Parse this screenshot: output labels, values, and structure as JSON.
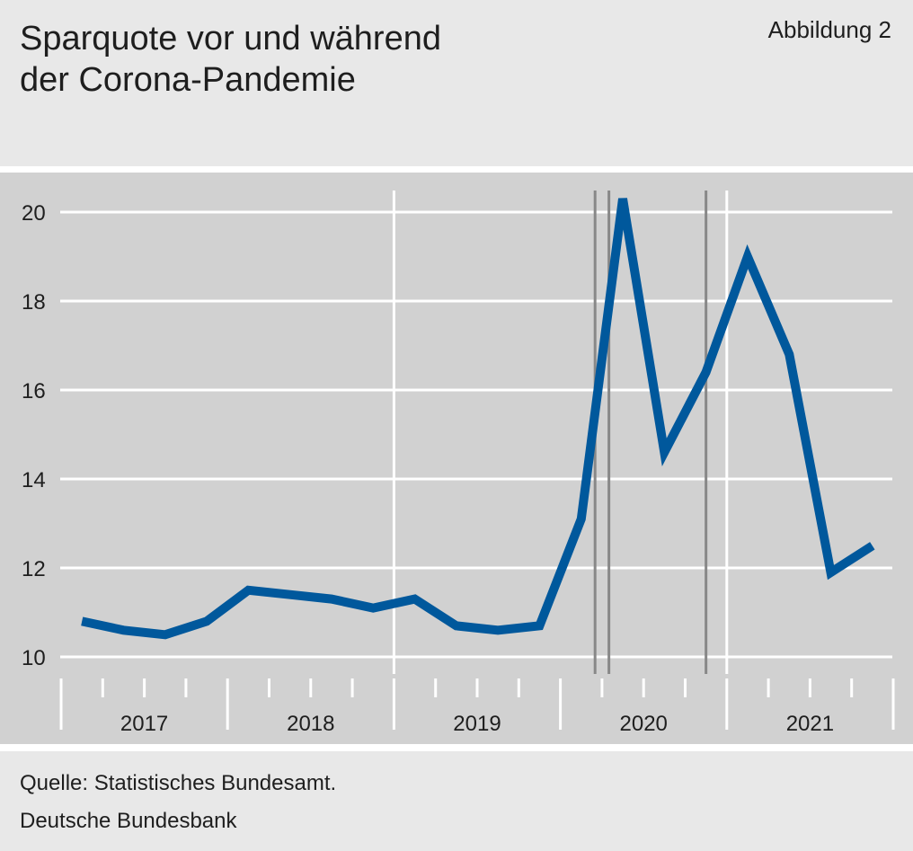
{
  "figure": {
    "title_line1": "Sparquote vor und während",
    "title_line2": "der Corona-Pandemie",
    "badge": "Abbildung 2",
    "source": "Quelle: Statistisches Bundesamt.",
    "publisher": "Deutsche Bundesbank"
  },
  "chart_data": {
    "type": "line",
    "title": "Sparquote vor und während der Corona-Pandemie",
    "xlabel": "",
    "ylabel": "",
    "ylim": [
      10,
      20.6
    ],
    "yticks": [
      10,
      12,
      14,
      16,
      18,
      20
    ],
    "years": [
      "2017",
      "2018",
      "2019",
      "2020",
      "2021"
    ],
    "x": [
      "2017 Q1",
      "2017 Q2",
      "2017 Q3",
      "2017 Q4",
      "2018 Q1",
      "2018 Q2",
      "2018 Q3",
      "2018 Q4",
      "2019 Q1",
      "2019 Q2",
      "2019 Q3",
      "2019 Q4",
      "2020 Q1",
      "2020 Q2",
      "2020 Q3",
      "2020 Q4",
      "2021 Q1",
      "2021 Q2",
      "2021 Q3",
      "2021 Q4"
    ],
    "series": [
      {
        "values": [
          10.8,
          10.6,
          10.5,
          10.8,
          11.5,
          11.4,
          11.3,
          11.1,
          11.3,
          10.7,
          10.6,
          10.7,
          13.1,
          20.3,
          14.6,
          16.4,
          19.0,
          16.8,
          11.9,
          12.5
        ]
      }
    ],
    "markers": [
      "2020-03",
      "2020-04",
      "2020-11"
    ],
    "grid": true,
    "colors": {
      "line": "#00589c",
      "grid": "#ffffff",
      "marker": "#888888",
      "background": "#d1d1d1"
    }
  }
}
